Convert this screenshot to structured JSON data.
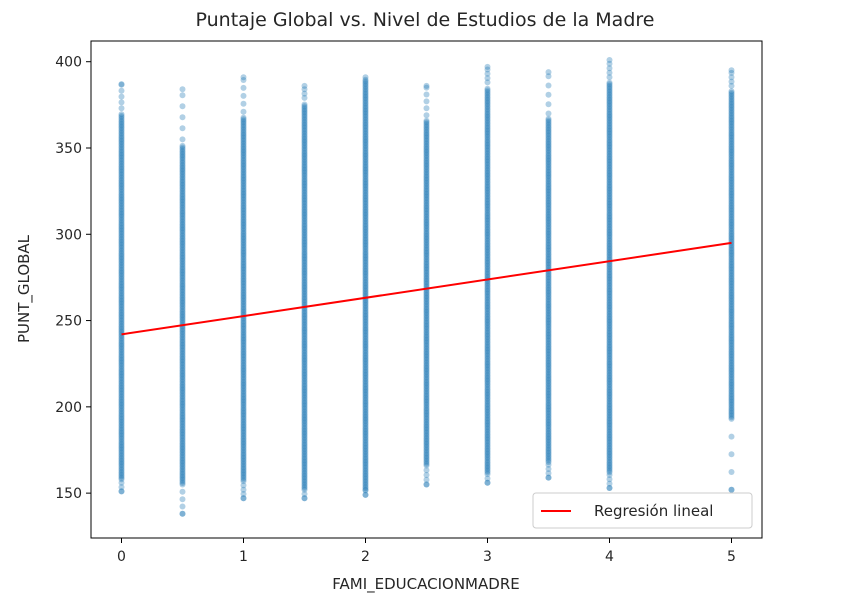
{
  "chart_data": {
    "type": "scatter",
    "title": "Puntaje Global vs. Nivel de Estudios de la Madre",
    "xlabel": "FAMI_EDUCACIONMADRE",
    "ylabel": "PUNT_GLOBAL",
    "xlim": [
      -0.25,
      5.25
    ],
    "ylim": [
      124,
      412
    ],
    "x_ticks": [
      0,
      1,
      2,
      3,
      4,
      5
    ],
    "y_ticks": [
      150,
      200,
      250,
      300,
      350,
      400
    ],
    "grid": false,
    "legend_position": "lower-right",
    "point_color": "#1f77b4",
    "line_color": "#ff0000",
    "scatter_columns": [
      {
        "x": 0,
        "min": 151,
        "dense_min": 158,
        "dense_max": 370,
        "max": 387
      },
      {
        "x": 0.5,
        "min": 138,
        "dense_min": 155,
        "dense_max": 352,
        "max": 384
      },
      {
        "x": 1,
        "min": 147,
        "dense_min": 157,
        "dense_max": 368,
        "max": 391
      },
      {
        "x": 1.5,
        "min": 147,
        "dense_min": 152,
        "dense_max": 376,
        "max": 386
      },
      {
        "x": 2,
        "min": 149,
        "dense_min": 152,
        "dense_max": 390,
        "max": 391
      },
      {
        "x": 2.5,
        "min": 155,
        "dense_min": 166,
        "dense_max": 366,
        "max": 386
      },
      {
        "x": 3,
        "min": 156,
        "dense_min": 162,
        "dense_max": 385,
        "max": 397
      },
      {
        "x": 3.5,
        "min": 159,
        "dense_min": 168,
        "dense_max": 367,
        "max": 394
      },
      {
        "x": 4,
        "min": 153,
        "dense_min": 162,
        "dense_max": 388,
        "max": 401
      },
      {
        "x": 5,
        "min": 152,
        "dense_min": 193,
        "dense_max": 383,
        "max": 395
      }
    ],
    "series": [
      {
        "name": "Regresión lineal",
        "type": "line",
        "x": [
          0,
          5
        ],
        "y": [
          242,
          295
        ]
      }
    ]
  }
}
